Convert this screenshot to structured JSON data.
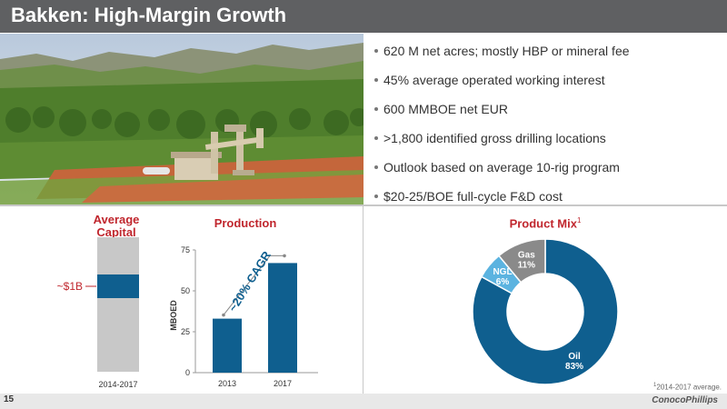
{
  "title": "Bakken: High-Margin Growth",
  "bullets": [
    "620 M net acres; mostly HBP or mineral fee",
    "45% average operated working interest",
    "600 MMBOE net EUR",
    ">1,800 identified gross drilling locations",
    "Outlook based on average 10-rig program",
    "$20-25/BOE full-cycle F&D cost"
  ],
  "capital": {
    "title_line1": "Average",
    "title_line2": "Capital",
    "label": "~$1B",
    "period": "2014-2017"
  },
  "production": {
    "title": "Production",
    "ylabel": "MBOED",
    "cagr_label": "~20% CAGR"
  },
  "product_mix": {
    "title": "Product Mix",
    "title_sup": "1",
    "footnote_sup": "1",
    "footnote": "2014-2017 average."
  },
  "footer": {
    "page_number": "15",
    "logo_text": "ConocoPhillips"
  },
  "colors": {
    "title_bar": "#5f6062",
    "accent_red": "#c0262d",
    "bar_blue": "#0f5f8f",
    "ngl_blue": "#5bb3e0",
    "gas_gray": "#8a8a8a"
  },
  "chart_data": [
    {
      "type": "bar",
      "title": "Production",
      "categories": [
        "2013",
        "2017"
      ],
      "values": [
        33,
        67
      ],
      "ylabel": "MBOED",
      "ylim": [
        0,
        75
      ],
      "yticks": [
        0,
        25,
        50,
        75
      ],
      "annotation": "~20% CAGR"
    },
    {
      "type": "pie",
      "title": "Product Mix",
      "labels": [
        "Oil",
        "NGL",
        "Gas"
      ],
      "values": [
        83,
        6,
        11
      ],
      "value_labels": [
        "83%",
        "6%",
        "11%"
      ]
    }
  ]
}
